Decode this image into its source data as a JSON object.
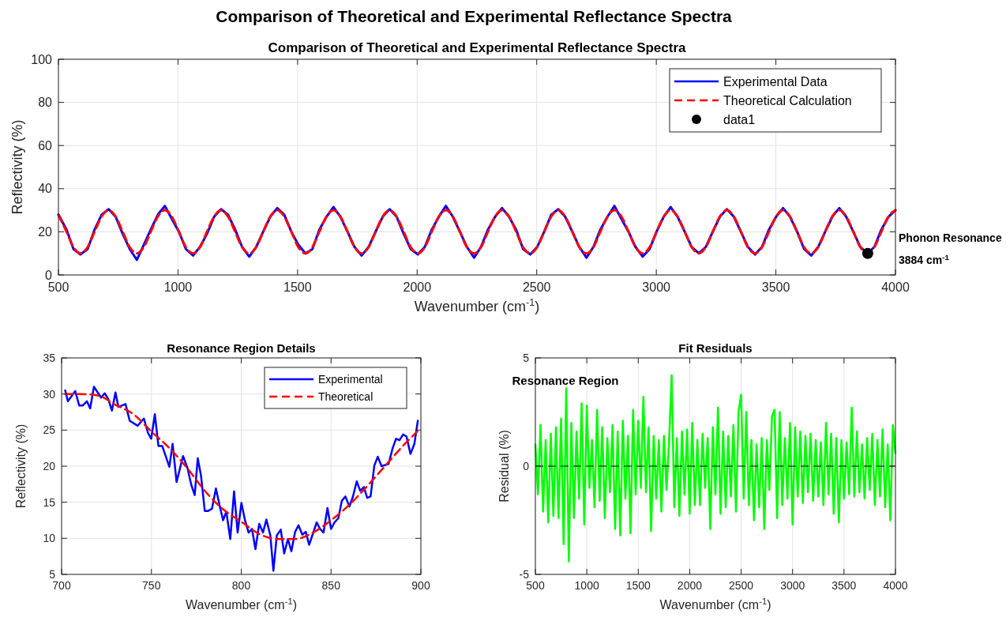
{
  "chart_data": [
    {
      "type": "line",
      "title": "Comparison of Theoretical and Experimental Reflectance Spectra",
      "subtitle": "Comparison of Theoretical and Experimental Reflectance Spectra",
      "xlabel": "Wavenumber (cm$^{-1}$)",
      "ylabel": "Reflectivity (%)",
      "xlim": [
        500,
        4000
      ],
      "ylim": [
        0,
        100
      ],
      "xticks": [
        500,
        1000,
        1500,
        2000,
        2500,
        3000,
        3500,
        4000
      ],
      "yticks": [
        0,
        20,
        40,
        60,
        80,
        100
      ],
      "grid": true,
      "legend": "top right",
      "series": [
        {
          "name": "Experimental Data",
          "color": "#0000ff",
          "line_style": "solid",
          "x": [
            500,
            534,
            563,
            592,
            622,
            651,
            681,
            710,
            739,
            769,
            798,
            828,
            857,
            886,
            916,
            945,
            974,
            1004,
            1033,
            1063,
            1092,
            1121,
            1151,
            1180,
            1209,
            1239,
            1268,
            1298,
            1327,
            1356,
            1386,
            1415,
            1444,
            1474,
            1503,
            1533,
            1562,
            1591,
            1621,
            1650,
            1679,
            1709,
            1738,
            1768,
            1797,
            1826,
            1856,
            1885,
            1914,
            1944,
            1973,
            2003,
            2032,
            2061,
            2091,
            2120,
            2149,
            2179,
            2208,
            2238,
            2267,
            2296,
            2326,
            2355,
            2384,
            2414,
            2443,
            2473,
            2502,
            2531,
            2561,
            2590,
            2619,
            2649,
            2678,
            2708,
            2737,
            2766,
            2796,
            2825,
            2854,
            2884,
            2913,
            2943,
            2972,
            3001,
            3031,
            3060,
            3089,
            3119,
            3148,
            3178,
            3207,
            3236,
            3266,
            3295,
            3324,
            3354,
            3383,
            3413,
            3442,
            3471,
            3501,
            3530,
            3559,
            3589,
            3618,
            3648,
            3677,
            3706,
            3736,
            3765,
            3794,
            3824,
            3853,
            3883,
            3912,
            3941,
            3971,
            4000
          ],
          "values": [
            28,
            21,
            12,
            9.5,
            12,
            21,
            28,
            30.5,
            27,
            19,
            12,
            7,
            14,
            21,
            28,
            32,
            26,
            20,
            12,
            9,
            13,
            19,
            27,
            30.5,
            28,
            21,
            13,
            8.5,
            13,
            20,
            27,
            31,
            28,
            20,
            14,
            10,
            12,
            21,
            27,
            31.5,
            27,
            20,
            13,
            9,
            13,
            20,
            27,
            30.5,
            27,
            19,
            12,
            9.5,
            13,
            21,
            27,
            32,
            27,
            20,
            13,
            8,
            13,
            21,
            27,
            31,
            27,
            21,
            12,
            9.5,
            13,
            20,
            28,
            30.5,
            27,
            20,
            13,
            8,
            13,
            21,
            27,
            32,
            26,
            20,
            13,
            8.5,
            12,
            20,
            27,
            31.5,
            27,
            20,
            13,
            10,
            13,
            20,
            27,
            30.5,
            27,
            20,
            13,
            9.5,
            13,
            21,
            27,
            31,
            27,
            20,
            12,
            9,
            13,
            20,
            27,
            31,
            27,
            20,
            13,
            10,
            13,
            21,
            27,
            30
          ]
        },
        {
          "name": "Theoretical Calculation",
          "color": "#ff0000",
          "line_style": "dashed",
          "x": [
            500,
            534,
            563,
            592,
            622,
            651,
            681,
            710,
            739,
            769,
            798,
            828,
            857,
            886,
            916,
            945,
            974,
            1004,
            1033,
            1063,
            1092,
            1121,
            1151,
            1180,
            1209,
            1239,
            1268,
            1298,
            1327,
            1356,
            1386,
            1415,
            1444,
            1474,
            1503,
            1533,
            1562,
            1591,
            1621,
            1650,
            1679,
            1709,
            1738,
            1768,
            1797,
            1826,
            1856,
            1885,
            1914,
            1944,
            1973,
            2003,
            2032,
            2061,
            2091,
            2120,
            2149,
            2179,
            2208,
            2238,
            2267,
            2296,
            2326,
            2355,
            2384,
            2414,
            2443,
            2473,
            2502,
            2531,
            2561,
            2590,
            2619,
            2649,
            2678,
            2708,
            2737,
            2766,
            2796,
            2825,
            2854,
            2884,
            2913,
            2943,
            2972,
            3001,
            3031,
            3060,
            3089,
            3119,
            3148,
            3178,
            3207,
            3236,
            3266,
            3295,
            3324,
            3354,
            3383,
            3413,
            3442,
            3471,
            3501,
            3530,
            3559,
            3589,
            3618,
            3648,
            3677,
            3706,
            3736,
            3765,
            3794,
            3824,
            3853,
            3883,
            3912,
            3941,
            3971,
            4000
          ],
          "values": [
            27.8,
            20,
            12.9,
            10,
            12.9,
            20,
            27.1,
            30,
            27.1,
            20,
            12.9,
            10,
            12.9,
            20,
            27.1,
            30,
            27.1,
            20,
            12.9,
            10,
            12.9,
            20,
            27.1,
            30,
            27.1,
            20,
            12.9,
            10,
            12.9,
            20,
            27.1,
            30,
            27.1,
            20,
            12.9,
            10,
            12.9,
            20,
            27.1,
            30,
            27.1,
            20,
            12.9,
            10,
            12.9,
            20,
            27.1,
            30,
            27.1,
            20,
            12.9,
            10,
            12.9,
            20,
            27.1,
            30,
            27.1,
            20,
            12.9,
            10,
            12.9,
            20,
            27.1,
            30,
            27.1,
            20,
            12.9,
            10,
            12.9,
            20,
            27.1,
            30,
            27.1,
            20,
            12.9,
            10,
            12.9,
            20,
            27.1,
            30,
            27.1,
            20,
            12.9,
            10,
            12.9,
            20,
            27.1,
            30,
            27.1,
            20,
            12.9,
            10,
            12.9,
            20,
            27.1,
            30,
            27.1,
            20,
            12.9,
            10,
            12.9,
            20,
            27.1,
            30,
            27.1,
            20,
            12.9,
            10,
            12.9,
            20,
            27.1,
            30,
            27.1,
            20,
            12.9,
            10,
            12.9,
            20,
            27.1,
            30
          ]
        },
        {
          "name": "data1",
          "type": "scatter",
          "color": "#000000",
          "marker": "circle",
          "x": [
            3884
          ],
          "values": [
            10
          ]
        }
      ],
      "annotations": [
        "Phonon Resonance",
        "3884 cm$^{-1}$"
      ]
    },
    {
      "type": "line",
      "title": "Resonance Region Details",
      "xlabel": "Wavenumber (cm$^{-1}$)",
      "ylabel": "Reflectivity (%)",
      "xlim": [
        700,
        900
      ],
      "ylim": [
        5,
        35
      ],
      "xticks": [
        700,
        750,
        800,
        850,
        900
      ],
      "yticks": [
        5,
        10,
        15,
        20,
        25,
        30,
        35
      ],
      "grid": true,
      "legend": "top right",
      "series": [
        {
          "name": "Experimental",
          "color": "#0000ff",
          "line_style": "solid",
          "x": [
            702,
            703.5,
            707.6,
            709.8,
            711.7,
            714.1,
            715.9,
            718,
            722,
            724,
            726,
            728,
            730,
            731.6,
            735.6,
            737.9,
            742.3,
            745.8,
            748.1,
            749.9,
            751.9,
            753.9,
            756,
            760,
            761.8,
            764,
            767.6,
            770,
            772.2,
            774.1,
            775.8,
            777.6,
            779.7,
            781.6,
            783.7,
            785.9,
            788,
            789.9,
            791.7,
            793.9,
            796,
            798,
            800.1,
            802,
            804.1,
            806,
            807.9,
            810,
            812.1,
            814,
            816.2,
            817.9,
            819.8,
            822,
            823.9,
            826,
            827.9,
            830,
            831.9,
            834,
            835.9,
            837.8,
            842,
            843.9,
            845.8,
            848,
            850,
            851.9,
            854.1,
            856,
            858,
            860.2,
            862.1,
            864.3,
            866.2,
            868.3,
            870.1,
            872,
            874.1,
            876,
            878.1,
            882,
            884.3,
            886.2,
            888.1,
            890.1,
            892,
            894.2,
            896.4,
            898.3
          ],
          "values": [
            30.5,
            29,
            30.4,
            28.4,
            28.4,
            29,
            28,
            31,
            29.5,
            30.1,
            29.3,
            27.7,
            30.2,
            28.2,
            28.6,
            26.3,
            25.6,
            26.6,
            24.6,
            23.8,
            27.2,
            22.8,
            22.8,
            19.9,
            23.1,
            17.8,
            21.4,
            19.8,
            17.4,
            16,
            21.1,
            18.7,
            13.8,
            13.8,
            14.1,
            16.9,
            14.5,
            12.5,
            13.7,
            9.9,
            16.5,
            10.8,
            14.9,
            12.6,
            10.8,
            11.3,
            8.5,
            12,
            10.8,
            12.6,
            10.4,
            5.5,
            10.4,
            11.2,
            7.9,
            9.9,
            8.2,
            10.9,
            11.8,
            10.5,
            10.9,
            9.1,
            12.2,
            11.3,
            10.8,
            14.2,
            11.3,
            12.2,
            12.8,
            15.2,
            15.8,
            14.4,
            15.7,
            17.9,
            16.6,
            17.1,
            15.6,
            15.8,
            20.1,
            21.3,
            20,
            20.3,
            22.5,
            23.8,
            23.6,
            24.4,
            24.1,
            21.7,
            23.1,
            26.3
          ]
        },
        {
          "name": "Theoretical",
          "color": "#ff0000",
          "line_style": "dashed",
          "x": [
            702,
            710,
            720,
            730,
            740,
            750,
            760,
            770,
            780,
            790,
            800,
            810,
            820,
            830,
            840,
            850,
            860,
            870,
            880,
            890,
            898
          ],
          "values": [
            30,
            30,
            29.8,
            28.5,
            27.2,
            24.8,
            22.5,
            19.7,
            16.5,
            14,
            12.3,
            10.6,
            9.9,
            9.9,
            10.8,
            12.5,
            14.6,
            17.2,
            20,
            22.8,
            24.8
          ]
        }
      ]
    },
    {
      "type": "line",
      "title": "Fit Residuals",
      "xlabel": "Wavenumber (cm$^{-1}$)",
      "ylabel": "Residual (%)",
      "xlim": [
        500,
        4000
      ],
      "ylim": [
        -5,
        5
      ],
      "xticks": [
        500,
        1000,
        1500,
        2000,
        2500,
        3000,
        3500,
        4000
      ],
      "yticks": [
        -5,
        0,
        5
      ],
      "grid": true,
      "ref_lines": [
        {
          "axis": "y",
          "value": 0,
          "color": "#000000",
          "line_style": "dashed"
        }
      ],
      "annotations": [
        "Resonance Region"
      ],
      "series": [
        {
          "color": "#00ff00",
          "x": [
            500,
            525,
            550,
            575,
            600,
            625,
            650,
            675,
            700,
            725,
            750,
            775,
            800,
            825,
            850,
            875,
            900,
            925,
            950,
            975,
            1000,
            1025,
            1050,
            1075,
            1100,
            1125,
            1150,
            1175,
            1200,
            1225,
            1250,
            1275,
            1300,
            1325,
            1350,
            1375,
            1400,
            1425,
            1450,
            1475,
            1500,
            1525,
            1550,
            1575,
            1600,
            1625,
            1650,
            1675,
            1700,
            1725,
            1750,
            1775,
            1800,
            1825,
            1850,
            1875,
            1900,
            1925,
            1950,
            1975,
            2000,
            2025,
            2050,
            2075,
            2100,
            2125,
            2150,
            2175,
            2200,
            2225,
            2250,
            2275,
            2300,
            2325,
            2350,
            2375,
            2400,
            2425,
            2450,
            2475,
            2500,
            2525,
            2550,
            2575,
            2600,
            2625,
            2650,
            2675,
            2700,
            2725,
            2750,
            2775,
            2800,
            2825,
            2850,
            2875,
            2900,
            2925,
            2950,
            2975,
            3000,
            3025,
            3050,
            3075,
            3100,
            3125,
            3150,
            3175,
            3200,
            3225,
            3250,
            3275,
            3300,
            3325,
            3350,
            3375,
            3400,
            3425,
            3450,
            3475,
            3500,
            3525,
            3550,
            3575,
            3600,
            3625,
            3650,
            3675,
            3700,
            3725,
            3750,
            3775,
            3800,
            3825,
            3850,
            3875,
            3900,
            3925,
            3950,
            3975,
            4000
          ],
          "values": [
            1,
            -1.3,
            1.9,
            -2.1,
            1.2,
            -2.6,
            1.5,
            -2.3,
            1.8,
            -2.4,
            2.2,
            -3.6,
            3.6,
            -4.4,
            2,
            -2.4,
            1.6,
            -1.5,
            2.9,
            -2.7,
            2.8,
            -1,
            1.2,
            -1.9,
            2.6,
            -1.6,
            1.8,
            -2.4,
            1.3,
            -1.2,
            1.9,
            -2.9,
            1.6,
            -3.2,
            2.1,
            -1.5,
            1.4,
            -3.1,
            2.6,
            -1.3,
            2.1,
            -1,
            3.2,
            -1.2,
            1.8,
            -3,
            1.4,
            -1.5,
            1.2,
            -2.1,
            1.4,
            -1.1,
            1.2,
            4.2,
            -1.9,
            1.3,
            -2.3,
            1.6,
            -1.3,
            1.7,
            -2.2,
            2,
            -1.8,
            1.2,
            -1.8,
            1.5,
            -1,
            1.3,
            -2.9,
            1.8,
            -1.3,
            2.7,
            -2.2,
            1.6,
            -1.9,
            1.4,
            -1.4,
            1.9,
            -2.1,
            2.5,
            3.3,
            -1.5,
            2.5,
            -1.8,
            1.2,
            -2.5,
            1,
            -1.9,
            1.3,
            -2.9,
            1.2,
            -1.1,
            2.3,
            2.6,
            -2.4,
            2.5,
            -1.8,
            1.3,
            -1.5,
            2,
            -2.7,
            1.8,
            -1.4,
            1.6,
            -1.7,
            1.4,
            -1.2,
            1.5,
            -1.6,
            1.2,
            -1.4,
            1.1,
            -1.8,
            2,
            -1.3,
            1.5,
            -2.2,
            1.3,
            -2.6,
            1.2,
            -1.5,
            1.1,
            -1.3,
            2.7,
            -1.4,
            1.6,
            -1.2,
            1,
            -1.5,
            1.3,
            -1.1,
            1.5,
            -1.8,
            1.2,
            -1.4,
            1.7,
            -1.9,
            1,
            -2.5,
            1.9,
            0.6
          ]
        }
      ]
    }
  ]
}
